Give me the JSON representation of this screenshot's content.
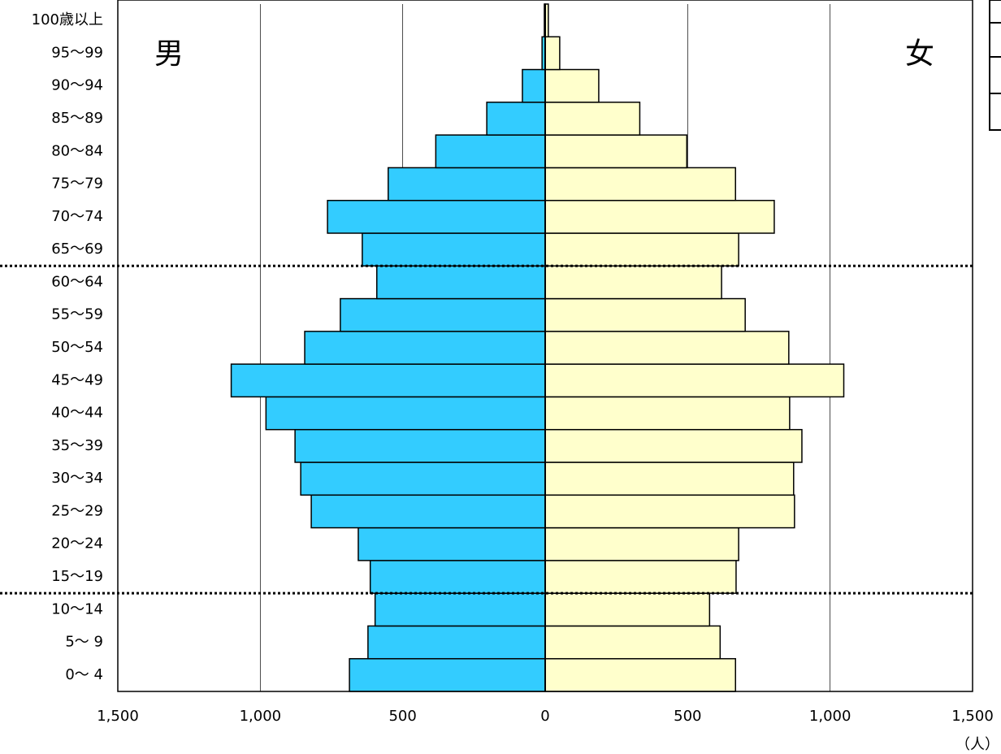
{
  "chart_data": {
    "type": "pyramid",
    "left_label": "男",
    "right_label": "女",
    "unit": "（人）",
    "categories": [
      "0〜 4",
      "5〜 9",
      "10〜14",
      "15〜19",
      "20〜24",
      "25〜29",
      "30〜34",
      "35〜39",
      "40〜44",
      "45〜49",
      "50〜54",
      "55〜59",
      "60〜64",
      "65〜69",
      "70〜74",
      "75〜79",
      "80〜84",
      "85〜89",
      "90〜94",
      "95〜99",
      "100歳以上"
    ],
    "series": [
      {
        "name": "男",
        "color": "#33ccff",
        "side": "left",
        "values": [
          687,
          622,
          597,
          614,
          656,
          821,
          858,
          878,
          980,
          1102,
          844,
          719,
          591,
          642,
          764,
          551,
          384,
          205,
          80,
          11,
          3
        ]
      },
      {
        "name": "女",
        "color": "#ffffcc",
        "side": "right",
        "values": [
          668,
          614,
          577,
          670,
          679,
          875,
          872,
          901,
          858,
          1048,
          855,
          702,
          619,
          679,
          804,
          668,
          497,
          332,
          188,
          51,
          11
        ]
      }
    ],
    "xlim": [
      -1500,
      1500
    ],
    "xticks": [
      {
        "value": -1500,
        "label": "1,500"
      },
      {
        "value": -1000,
        "label": "1,000"
      },
      {
        "value": -500,
        "label": "500"
      },
      0,
      500,
      {
        "value": 1000,
        "label": "1,000"
      },
      {
        "value": 1500,
        "label": "1,500"
      }
    ],
    "grid": true
  }
}
